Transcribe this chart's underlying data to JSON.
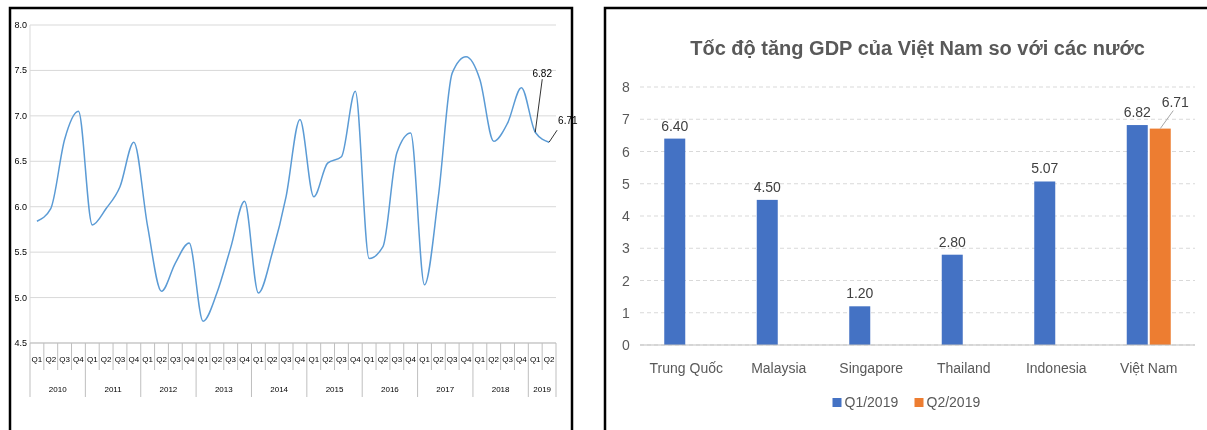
{
  "chart_data": [
    {
      "type": "line",
      "categories": [
        "Q1",
        "Q2",
        "Q3",
        "Q4",
        "Q1",
        "Q2",
        "Q3",
        "Q4",
        "Q1",
        "Q2",
        "Q3",
        "Q4",
        "Q1",
        "Q2",
        "Q3",
        "Q4",
        "Q1",
        "Q2",
        "Q3",
        "Q4",
        "Q1",
        "Q2",
        "Q3",
        "Q4",
        "Q1",
        "Q2",
        "Q3",
        "Q4",
        "Q1",
        "Q2",
        "Q3",
        "Q4",
        "Q1",
        "Q2",
        "Q3",
        "Q4",
        "Q1",
        "Q2"
      ],
      "series": [
        {
          "color": "#5b9bd5",
          "values": [
            5.84,
            5.98,
            6.74,
            7.05,
            5.8,
            5.98,
            6.22,
            6.71,
            5.78,
            5.07,
            5.38,
            5.6,
            4.74,
            5.05,
            5.55,
            6.06,
            5.05,
            5.49,
            6.11,
            6.96,
            6.11,
            6.48,
            6.55,
            7.27,
            5.43,
            5.56,
            6.59,
            6.81,
            5.14,
            6.11,
            7.47,
            7.65,
            7.4,
            6.72,
            6.92,
            7.31,
            6.82,
            6.71
          ],
          "value_labels": [
            null,
            null,
            null,
            null,
            null,
            null,
            null,
            null,
            null,
            null,
            null,
            null,
            null,
            null,
            null,
            null,
            null,
            null,
            null,
            null,
            null,
            null,
            null,
            null,
            null,
            null,
            null,
            null,
            null,
            null,
            null,
            null,
            null,
            null,
            null,
            null,
            "6.82",
            "6.71"
          ]
        }
      ],
      "annotations": [
        "2010",
        "2011",
        "2012",
        "2013",
        "2014",
        "2015",
        "2016",
        "2017",
        "2018",
        "2019"
      ],
      "ylim": [
        4.5,
        8.0
      ],
      "yticks": [
        {
          "value": 4.5,
          "label": "4.5"
        },
        {
          "value": 5,
          "label": "5.0"
        },
        {
          "value": 5.5,
          "label": "5.5"
        },
        {
          "value": 6,
          "label": "6.0"
        },
        {
          "value": 6.5,
          "label": "6.5"
        },
        {
          "value": 7,
          "label": "7.0"
        },
        {
          "value": 7.5,
          "label": "7.5"
        },
        {
          "value": 8,
          "label": "8.0"
        }
      ],
      "grid": "y",
      "marker": "none",
      "line_style": "solid"
    },
    {
      "type": "bar",
      "title": "Tốc độ tăng GDP của Việt Nam so với các nước",
      "categories": [
        "Trung Quốc",
        "Malaysia",
        "Singapore",
        "Thailand",
        "Indonesia",
        "Việt Nam"
      ],
      "series": [
        {
          "name": "Q1/2019",
          "color": "#4472c4",
          "values": [
            6.4,
            4.5,
            1.2,
            2.8,
            5.07,
            6.82
          ],
          "value_labels": [
            "6.40",
            "4.50",
            "1.20",
            "2.80",
            "5.07",
            "6.82"
          ]
        },
        {
          "name": "Q2/2019",
          "color": "#ed7d31",
          "values": [
            null,
            null,
            null,
            null,
            null,
            6.71
          ],
          "value_labels": [
            null,
            null,
            null,
            null,
            null,
            "6.71"
          ]
        }
      ],
      "ylim": [
        0,
        8
      ],
      "yticks": [
        0,
        1,
        2,
        3,
        4,
        5,
        6,
        7,
        8
      ],
      "grid": "y",
      "legend": "bottom"
    }
  ]
}
